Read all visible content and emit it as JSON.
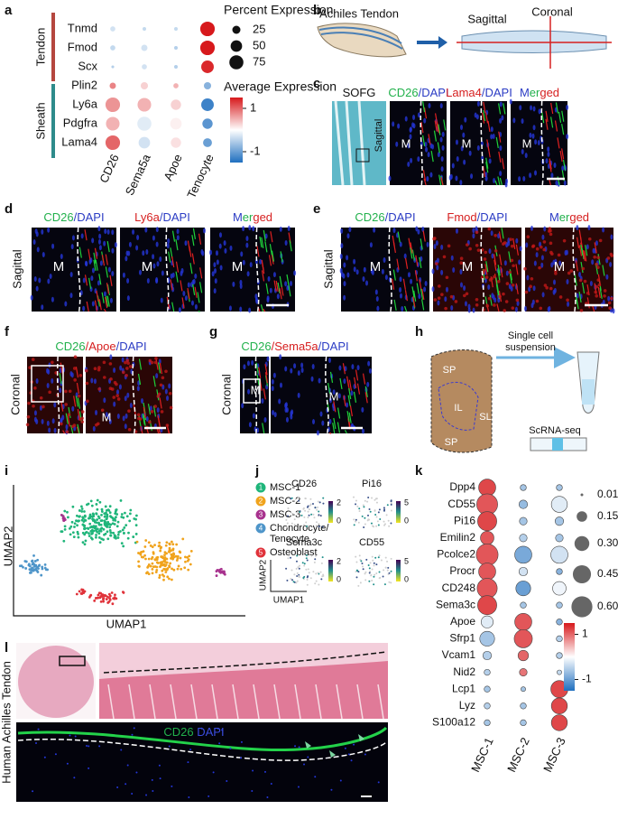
{
  "a": {
    "label": "a",
    "groups": [
      "Tendon",
      "Sheath"
    ],
    "genes": [
      "Tnmd",
      "Fmod",
      "Scx",
      "Plin2",
      "Ly6a",
      "Pdgfra",
      "Lama4"
    ],
    "cells": [
      "CD26",
      "Sema5a",
      "Apoe",
      "Tenocyte"
    ],
    "percent": [
      [
        10,
        5,
        5,
        80
      ],
      [
        10,
        15,
        5,
        80
      ],
      [
        3,
        10,
        5,
        60
      ],
      [
        15,
        20,
        10,
        20
      ],
      [
        80,
        70,
        40,
        60
      ],
      [
        70,
        75,
        50,
        40
      ],
      [
        80,
        50,
        40,
        30
      ]
    ],
    "average": [
      [
        -0.3,
        -0.4,
        -0.4,
        1.5
      ],
      [
        -0.4,
        -0.3,
        -0.5,
        1.5
      ],
      [
        -0.5,
        -0.3,
        -0.5,
        1.4
      ],
      [
        0.8,
        0.3,
        0.5,
        -0.8
      ],
      [
        0.7,
        0.5,
        0.3,
        -1.3
      ],
      [
        0.5,
        -0.2,
        0.1,
        -1.1
      ],
      [
        1.0,
        -0.3,
        0.2,
        -1.0
      ]
    ],
    "size_legend": {
      "title": "Percent Expression",
      "ticks": [
        25,
        50,
        75
      ]
    },
    "color_legend": {
      "title": "Average Expression",
      "ticks": [
        1,
        -1
      ],
      "range": [
        -1.5,
        1.5
      ]
    }
  },
  "b": {
    "label": "b",
    "tendon": "Achiles Tendon",
    "sagittal": "Sagittal",
    "coronal": "Coronal"
  },
  "c": {
    "label": "c",
    "titles": [
      [
        {
          "text": "SOFG",
          "color": "#111111"
        }
      ],
      [
        {
          "text": "CD26",
          "color": "#22b14c"
        },
        {
          "text": "/DAPI",
          "color": "#2b3cc4"
        }
      ],
      [
        {
          "text": "Lama4",
          "color": "#d62020"
        },
        {
          "text": "/DAPI",
          "color": "#2b3cc4"
        }
      ],
      [
        {
          "text": "M",
          "color": "#2b3cc4"
        },
        {
          "text": "er",
          "color": "#22b14c"
        },
        {
          "text": "ged",
          "color": "#d62020"
        }
      ]
    ],
    "plane": "Sagittal",
    "marker": "M"
  },
  "d": {
    "label": "d",
    "titles": [
      [
        {
          "text": "CD26",
          "color": "#22b14c"
        },
        {
          "text": "/DAPI",
          "color": "#2b3cc4"
        }
      ],
      [
        {
          "text": "Ly6a",
          "color": "#d62020"
        },
        {
          "text": "/DAPI",
          "color": "#2b3cc4"
        }
      ],
      [
        {
          "text": "M",
          "color": "#2b3cc4"
        },
        {
          "text": "er",
          "color": "#22b14c"
        },
        {
          "text": "ged",
          "color": "#d62020"
        }
      ]
    ],
    "plane": "Sagittal",
    "marker": "M"
  },
  "e": {
    "label": "e",
    "titles": [
      [
        {
          "text": "CD26",
          "color": "#22b14c"
        },
        {
          "text": "/DAPI",
          "color": "#2b3cc4"
        }
      ],
      [
        {
          "text": "Fmod",
          "color": "#d62020"
        },
        {
          "text": "/DAPI",
          "color": "#2b3cc4"
        }
      ],
      [
        {
          "text": "M",
          "color": "#2b3cc4"
        },
        {
          "text": "er",
          "color": "#22b14c"
        },
        {
          "text": "ged",
          "color": "#d62020"
        }
      ]
    ],
    "plane": "Sagittal",
    "marker": "M"
  },
  "f": {
    "label": "f",
    "title": [
      {
        "text": "CD26",
        "color": "#22b14c"
      },
      {
        "text": "/Apoe",
        "color": "#d62020"
      },
      {
        "text": "/DAPI",
        "color": "#2b3cc4"
      }
    ],
    "plane": "Coronal",
    "marker": "M"
  },
  "g": {
    "label": "g",
    "title": [
      {
        "text": "CD26",
        "color": "#22b14c"
      },
      {
        "text": "/Sema5a",
        "color": "#d62020"
      },
      {
        "text": "/DAPI",
        "color": "#2b3cc4"
      }
    ],
    "plane": "Coronal",
    "marker": "M"
  },
  "h": {
    "label": "h",
    "step": [
      "Single cell",
      "suspension"
    ],
    "method": "ScRNA-seq",
    "regions": [
      "SP",
      "IL",
      "SL",
      "SP"
    ]
  },
  "i": {
    "label": "i",
    "x_label": "UMAP1",
    "y_label": "UMAP2",
    "legend": [
      {
        "number": 1,
        "name": [
          "MSC-1"
        ],
        "color": "#1fb57a"
      },
      {
        "number": 2,
        "name": [
          "MSC-2"
        ],
        "color": "#f0a31c"
      },
      {
        "number": 3,
        "name": [
          "MSC-3"
        ],
        "color": "#a8328e"
      },
      {
        "number": 4,
        "name": [
          "Chondrocyte/",
          "Tenocyte"
        ],
        "color": "#4e95c9"
      },
      {
        "number": 5,
        "name": [
          "Osteoblast"
        ],
        "color": "#e0323a"
      }
    ]
  },
  "j": {
    "label": "j",
    "x_label": "UMAP1",
    "y_label": "UMAP2",
    "plots": [
      {
        "title": "CD26",
        "colorbar": [
          2,
          0
        ]
      },
      {
        "title": "Pi16",
        "colorbar": [
          5,
          0
        ]
      },
      {
        "title": "Sema3c",
        "colorbar": [
          2,
          0
        ]
      },
      {
        "title": "CD55",
        "colorbar": [
          5,
          0
        ]
      }
    ]
  },
  "k": {
    "label": "k",
    "genes": [
      "Dpp4",
      "CD55",
      "Pi16",
      "Emilin2",
      "Pcolce2",
      "Procr",
      "CD248",
      "Sema3c",
      "Apoe",
      "Sfrp1",
      "Vcam1",
      "Nid2",
      "Lcp1",
      "Lyz",
      "S100a12"
    ],
    "cells": [
      "MSC-1",
      "MSC-2",
      "MSC-3"
    ],
    "percent": [
      [
        0.4,
        0.05,
        0.05
      ],
      [
        0.6,
        0.1,
        0.35
      ],
      [
        0.5,
        0.08,
        0.1
      ],
      [
        0.25,
        0.08,
        0.08
      ],
      [
        0.65,
        0.4,
        0.4
      ],
      [
        0.4,
        0.1,
        0.05
      ],
      [
        0.55,
        0.3,
        0.25
      ],
      [
        0.5,
        0.05,
        0.05
      ],
      [
        0.2,
        0.4,
        0.05
      ],
      [
        0.3,
        0.45,
        0.05
      ],
      [
        0.1,
        0.15,
        0.05
      ],
      [
        0.05,
        0.08,
        0.03
      ],
      [
        0.05,
        0.03,
        0.4
      ],
      [
        0.05,
        0.05,
        0.35
      ],
      [
        0.05,
        0.05,
        0.35
      ]
    ],
    "average": [
      [
        1.2,
        -0.6,
        -0.6
      ],
      [
        1.1,
        -0.7,
        -0.2
      ],
      [
        1.2,
        -0.6,
        -0.6
      ],
      [
        1.1,
        -0.5,
        -0.6
      ],
      [
        1.1,
        -0.9,
        -0.3
      ],
      [
        1.1,
        -0.3,
        -0.8
      ],
      [
        1.1,
        -1.0,
        -0.1
      ],
      [
        1.2,
        -0.6,
        -0.6
      ],
      [
        -0.2,
        1.1,
        -0.8
      ],
      [
        -0.6,
        1.1,
        -0.5
      ],
      [
        -0.5,
        1.0,
        -0.5
      ],
      [
        -0.5,
        0.9,
        -0.4
      ],
      [
        -0.6,
        -0.6,
        1.2
      ],
      [
        -0.5,
        -0.6,
        1.2
      ],
      [
        -0.6,
        -0.6,
        1.2
      ]
    ],
    "size_legend": {
      "ticks": [
        0.01,
        0.15,
        {
          "value": 0.3,
          "label": "0.30"
        },
        0.45,
        {
          "value": 0.6,
          "label": "0.60"
        }
      ]
    },
    "color_legend": {
      "ticks": [
        1,
        -1
      ],
      "range": [
        -1.5,
        1.5
      ]
    }
  },
  "l": {
    "label": "l",
    "tissue": "Human Achilles Tendon",
    "stain": [
      {
        "text": "CD26",
        "color": "#22b14c"
      },
      {
        "text": " DAPI",
        "color": "#3b4de0"
      }
    ]
  }
}
